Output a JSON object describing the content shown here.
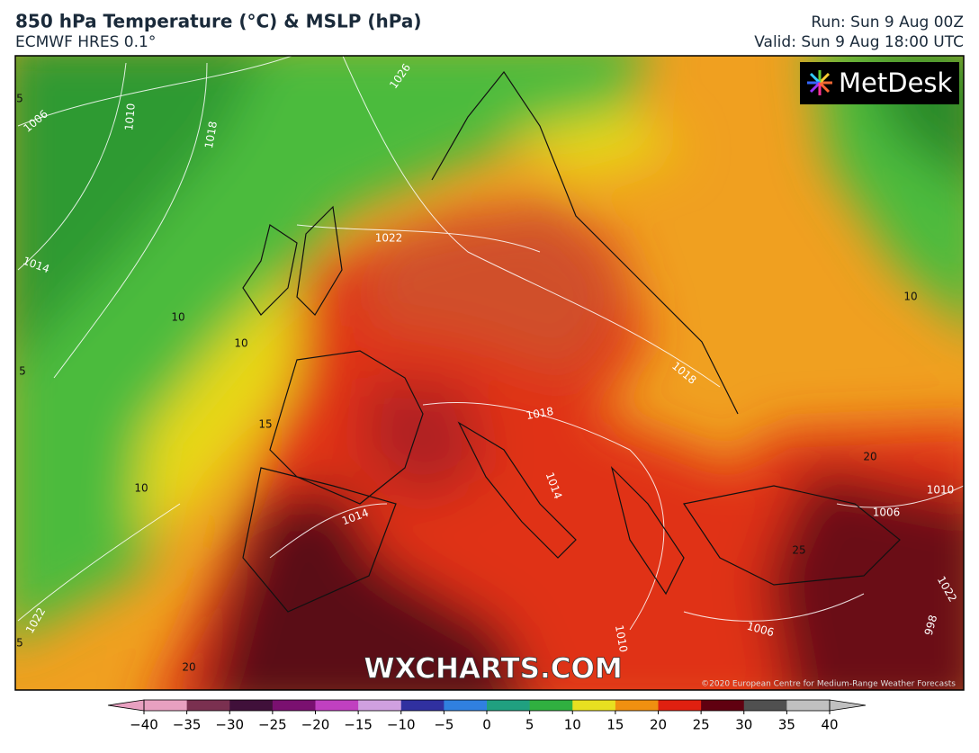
{
  "header": {
    "title": "850 hPa Temperature (°C) & MSLP (hPa)",
    "subtitle": "ECMWF HRES 0.1°",
    "run": "Run: Sun 9 Aug 00Z",
    "valid": "Valid: Sun 9 Aug 18:00 UTC"
  },
  "map": {
    "logo": "MetDesk",
    "watermark": "WXCHARTS.COM",
    "copyright": "©2020 European Centre for Medium-Range Weather Forecasts",
    "isobar_labels": [
      "1006",
      "1010",
      "1018",
      "1026",
      "1014",
      "1022",
      "1018",
      "1018",
      "1014",
      "1014",
      "1006",
      "1010",
      "1006",
      "1010",
      "1022",
      "998",
      "1022"
    ],
    "temperature_labels": [
      "5",
      "10",
      "10",
      "5",
      "15",
      "10",
      "20",
      "25",
      "10",
      "20",
      "5"
    ]
  },
  "colorbar": {
    "colors": [
      "#e8a0c0",
      "#7a3050",
      "#40103a",
      "#7a1070",
      "#c040c0",
      "#d0a0e0",
      "#3030a0",
      "#3080e0",
      "#20a080",
      "#30b040",
      "#e8e020",
      "#f09010",
      "#e02010",
      "#600010",
      "#505050",
      "#c0c0c0"
    ],
    "ticks": [
      {
        "value": -40,
        "label": "−40"
      },
      {
        "value": -35,
        "label": "−35"
      },
      {
        "value": -30,
        "label": "−30"
      },
      {
        "value": -25,
        "label": "−25"
      },
      {
        "value": -20,
        "label": "−20"
      },
      {
        "value": -15,
        "label": "−15"
      },
      {
        "value": -10,
        "label": "−10"
      },
      {
        "value": -5,
        "label": "−5"
      },
      0,
      5,
      10,
      15,
      20,
      25,
      30,
      35,
      40
    ]
  }
}
